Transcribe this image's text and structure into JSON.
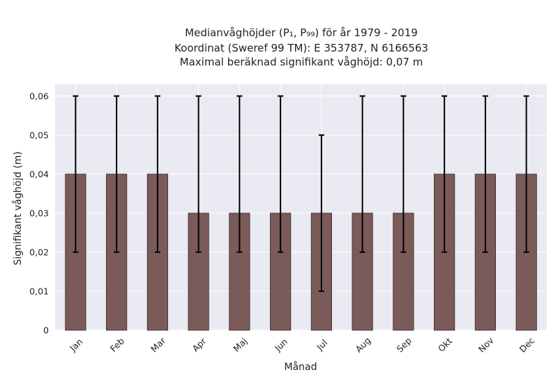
{
  "chart_data": {
    "type": "bar",
    "title_lines": [
      "Medianvåghöjder (P₁, P₉₉) för år 1979 - 2019",
      "Koordinat (Sweref 99 TM): E 353787, N 6166563",
      "Maximal beräknad signifikant våghöjd: 0,07 m"
    ],
    "xlabel": "Månad",
    "ylabel": "Signifikant våghöjd (m)",
    "categories": [
      "Jan",
      "Feb",
      "Mar",
      "Apr",
      "Maj",
      "Jun",
      "Jul",
      "Aug",
      "Sep",
      "Okt",
      "Nov",
      "Dec"
    ],
    "values": [
      0.04,
      0.04,
      0.04,
      0.03,
      0.03,
      0.03,
      0.03,
      0.03,
      0.03,
      0.04,
      0.04,
      0.04
    ],
    "error_low": [
      0.02,
      0.02,
      0.02,
      0.02,
      0.02,
      0.02,
      0.01,
      0.02,
      0.02,
      0.02,
      0.02,
      0.02
    ],
    "error_high": [
      0.06,
      0.06,
      0.06,
      0.06,
      0.06,
      0.06,
      0.05,
      0.06,
      0.06,
      0.06,
      0.06,
      0.06
    ],
    "ylim": [
      0,
      0.063
    ],
    "yticks": [
      0,
      0.01,
      0.02,
      0.03,
      0.04,
      0.05,
      0.06
    ],
    "ytick_labels": [
      "0",
      "0,01",
      "0,02",
      "0,03",
      "0,04",
      "0,05",
      "0,06"
    ],
    "grid": true,
    "colors": {
      "bar": "#7b5a5a",
      "bar_edge": "#3a2a2a",
      "plot_background": "#eaeaf2",
      "grid": "#ffffff",
      "error_bar": "#000000"
    }
  }
}
